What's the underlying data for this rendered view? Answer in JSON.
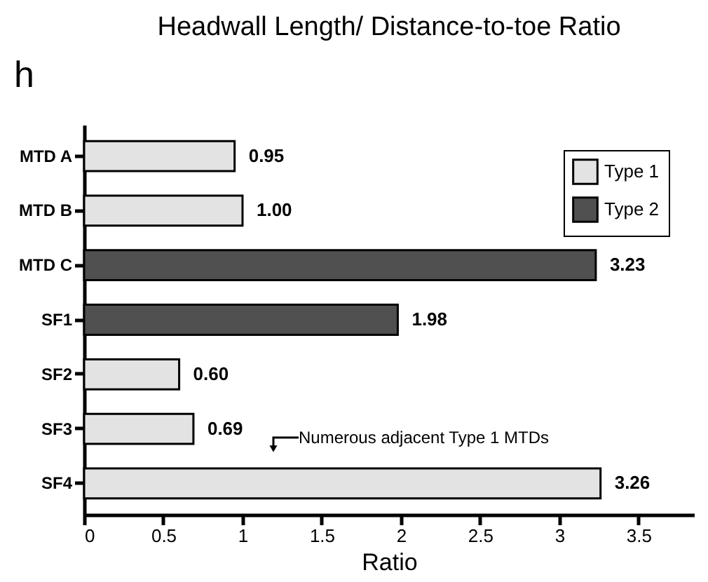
{
  "chart_data": {
    "type": "bar",
    "orientation": "horizontal",
    "title": "Headwall Length/ Distance-to-toe Ratio",
    "xlabel": "Ratio",
    "categories": [
      "MTD A",
      "MTD B",
      "MTD C",
      "SF1",
      "SF2",
      "SF3",
      "SF4"
    ],
    "series": [
      {
        "name": "Type 1",
        "color": "#e3e3e3",
        "values": [
          0.95,
          1.0,
          null,
          null,
          0.6,
          0.69,
          3.26
        ]
      },
      {
        "name": "Type 2",
        "color": "#505050",
        "values": [
          null,
          null,
          3.23,
          1.98,
          null,
          null,
          null
        ]
      }
    ],
    "xlim": [
      0,
      3.85
    ],
    "xticks": [
      0,
      0.5,
      1,
      1.5,
      2,
      2.5,
      3,
      3.5
    ],
    "legend": "top right",
    "grid": false,
    "value_labels": [
      "0.95",
      "1.00",
      "3.23",
      "1.98",
      "0.60",
      "0.69",
      "3.26"
    ],
    "annotations": [
      "h",
      "Numerous adjacent Type 1 MTDs"
    ]
  }
}
